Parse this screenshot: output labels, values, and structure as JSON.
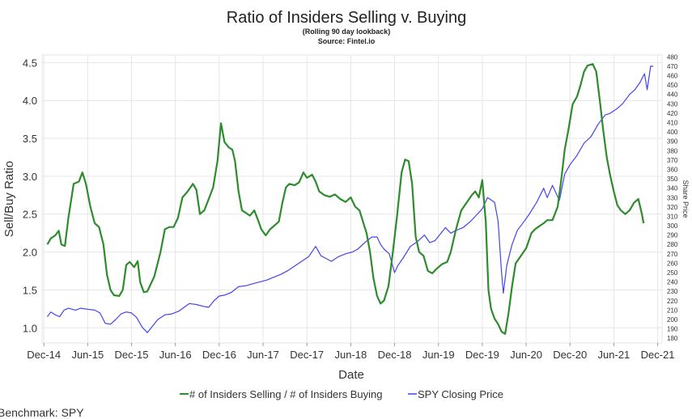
{
  "chart_data": {
    "type": "line",
    "title": "Ratio of Insiders Selling v. Buying",
    "subtitle_1": "(Rolling 90 day lookback)",
    "subtitle_2": "Source: Fintel.io",
    "xlabel": "Date",
    "ylabel": "Sell/Buy Ratio",
    "y2label": "Share Price",
    "xlim": [
      2014.9,
      2021.97
    ],
    "ylim": [
      0.8,
      4.6
    ],
    "y2lim": [
      175,
      482
    ],
    "x_ticks": [
      {
        "label": "Dec-14",
        "x": 2014.92
      },
      {
        "label": "Jun-15",
        "x": 2015.42
      },
      {
        "label": "Dec-15",
        "x": 2015.92
      },
      {
        "label": "Jun-16",
        "x": 2016.42
      },
      {
        "label": "Dec-16",
        "x": 2016.92
      },
      {
        "label": "Jun-17",
        "x": 2017.42
      },
      {
        "label": "Dec-17",
        "x": 2017.92
      },
      {
        "label": "Jun-18",
        "x": 2018.42
      },
      {
        "label": "Dec-18",
        "x": 2018.92
      },
      {
        "label": "Jun-19",
        "x": 2019.42
      },
      {
        "label": "Dec-19",
        "x": 2019.92
      },
      {
        "label": "Jun-20",
        "x": 2020.42
      },
      {
        "label": "Dec-20",
        "x": 2020.92
      },
      {
        "label": "Jun-21",
        "x": 2021.42
      },
      {
        "label": "Dec-21",
        "x": 2021.92
      }
    ],
    "y_ticks": [
      "1.0",
      "1.5",
      "2.0",
      "2.5",
      "3.0",
      "3.5",
      "4.0",
      "4.5"
    ],
    "y2_ticks": [
      180,
      190,
      200,
      210,
      220,
      230,
      240,
      250,
      260,
      270,
      280,
      290,
      300,
      310,
      320,
      330,
      340,
      350,
      360,
      370,
      380,
      390,
      400,
      410,
      420,
      430,
      440,
      450,
      460,
      470,
      480
    ],
    "grid": true,
    "legend_position": "bottom",
    "series": [
      {
        "name": "# of Insiders Selling / # of Insiders Buying",
        "color": "#2e8b2e",
        "axis": "left",
        "points": [
          [
            2014.96,
            2.1
          ],
          [
            2015.0,
            2.18
          ],
          [
            2015.05,
            2.22
          ],
          [
            2015.09,
            2.28
          ],
          [
            2015.12,
            2.1
          ],
          [
            2015.16,
            2.08
          ],
          [
            2015.2,
            2.45
          ],
          [
            2015.26,
            2.9
          ],
          [
            2015.32,
            2.93
          ],
          [
            2015.36,
            3.05
          ],
          [
            2015.4,
            2.9
          ],
          [
            2015.45,
            2.6
          ],
          [
            2015.5,
            2.38
          ],
          [
            2015.55,
            2.33
          ],
          [
            2015.6,
            2.1
          ],
          [
            2015.64,
            1.7
          ],
          [
            2015.68,
            1.5
          ],
          [
            2015.72,
            1.43
          ],
          [
            2015.78,
            1.42
          ],
          [
            2015.82,
            1.5
          ],
          [
            2015.86,
            1.83
          ],
          [
            2015.9,
            1.87
          ],
          [
            2015.95,
            1.8
          ],
          [
            2015.99,
            1.88
          ],
          [
            2016.02,
            1.6
          ],
          [
            2016.06,
            1.47
          ],
          [
            2016.1,
            1.48
          ],
          [
            2016.18,
            1.68
          ],
          [
            2016.25,
            2.0
          ],
          [
            2016.3,
            2.3
          ],
          [
            2016.35,
            2.33
          ],
          [
            2016.4,
            2.33
          ],
          [
            2016.45,
            2.45
          ],
          [
            2016.5,
            2.72
          ],
          [
            2016.56,
            2.8
          ],
          [
            2016.62,
            2.9
          ],
          [
            2016.66,
            2.82
          ],
          [
            2016.7,
            2.5
          ],
          [
            2016.75,
            2.55
          ],
          [
            2016.8,
            2.7
          ],
          [
            2016.85,
            2.85
          ],
          [
            2016.9,
            3.2
          ],
          [
            2016.94,
            3.7
          ],
          [
            2016.98,
            3.45
          ],
          [
            2017.03,
            3.38
          ],
          [
            2017.07,
            3.35
          ],
          [
            2017.1,
            3.2
          ],
          [
            2017.14,
            2.8
          ],
          [
            2017.18,
            2.55
          ],
          [
            2017.22,
            2.52
          ],
          [
            2017.27,
            2.48
          ],
          [
            2017.32,
            2.55
          ],
          [
            2017.36,
            2.43
          ],
          [
            2017.4,
            2.3
          ],
          [
            2017.45,
            2.22
          ],
          [
            2017.5,
            2.3
          ],
          [
            2017.55,
            2.35
          ],
          [
            2017.6,
            2.4
          ],
          [
            2017.64,
            2.65
          ],
          [
            2017.68,
            2.85
          ],
          [
            2017.72,
            2.9
          ],
          [
            2017.78,
            2.88
          ],
          [
            2017.83,
            2.92
          ],
          [
            2017.88,
            3.05
          ],
          [
            2017.92,
            2.98
          ],
          [
            2017.98,
            3.02
          ],
          [
            2018.02,
            2.93
          ],
          [
            2018.06,
            2.8
          ],
          [
            2018.12,
            2.75
          ],
          [
            2018.18,
            2.73
          ],
          [
            2018.24,
            2.76
          ],
          [
            2018.3,
            2.7
          ],
          [
            2018.36,
            2.66
          ],
          [
            2018.42,
            2.72
          ],
          [
            2018.47,
            2.6
          ],
          [
            2018.52,
            2.55
          ],
          [
            2018.56,
            2.4
          ],
          [
            2018.6,
            2.25
          ],
          [
            2018.64,
            2.0
          ],
          [
            2018.68,
            1.65
          ],
          [
            2018.72,
            1.42
          ],
          [
            2018.76,
            1.32
          ],
          [
            2018.8,
            1.36
          ],
          [
            2018.85,
            1.55
          ],
          [
            2018.9,
            2.0
          ],
          [
            2018.95,
            2.5
          ],
          [
            2019.0,
            3.05
          ],
          [
            2019.04,
            3.22
          ],
          [
            2019.08,
            3.2
          ],
          [
            2019.12,
            2.9
          ],
          [
            2019.16,
            2.2
          ],
          [
            2019.2,
            2.0
          ],
          [
            2019.25,
            1.95
          ],
          [
            2019.3,
            1.75
          ],
          [
            2019.35,
            1.72
          ],
          [
            2019.4,
            1.78
          ],
          [
            2019.46,
            1.84
          ],
          [
            2019.52,
            1.87
          ],
          [
            2019.56,
            2.0
          ],
          [
            2019.62,
            2.3
          ],
          [
            2019.68,
            2.55
          ],
          [
            2019.74,
            2.65
          ],
          [
            2019.8,
            2.75
          ],
          [
            2019.84,
            2.8
          ],
          [
            2019.88,
            2.72
          ],
          [
            2019.92,
            2.95
          ],
          [
            2019.96,
            2.4
          ],
          [
            2019.99,
            1.5
          ],
          [
            2020.02,
            1.25
          ],
          [
            2020.06,
            1.12
          ],
          [
            2020.1,
            1.05
          ],
          [
            2020.14,
            0.95
          ],
          [
            2020.18,
            0.92
          ],
          [
            2020.22,
            1.2
          ],
          [
            2020.26,
            1.55
          ],
          [
            2020.3,
            1.85
          ],
          [
            2020.36,
            1.95
          ],
          [
            2020.42,
            2.05
          ],
          [
            2020.48,
            2.25
          ],
          [
            2020.52,
            2.3
          ],
          [
            2020.58,
            2.35
          ],
          [
            2020.62,
            2.38
          ],
          [
            2020.66,
            2.42
          ],
          [
            2020.72,
            2.42
          ],
          [
            2020.78,
            2.6
          ],
          [
            2020.82,
            2.95
          ],
          [
            2020.86,
            3.35
          ],
          [
            2020.9,
            3.6
          ],
          [
            2020.95,
            3.95
          ],
          [
            2021.0,
            4.05
          ],
          [
            2021.04,
            4.2
          ],
          [
            2021.08,
            4.38
          ],
          [
            2021.12,
            4.46
          ],
          [
            2021.18,
            4.48
          ],
          [
            2021.22,
            4.38
          ],
          [
            2021.26,
            4.0
          ],
          [
            2021.3,
            3.6
          ],
          [
            2021.34,
            3.25
          ],
          [
            2021.38,
            3.0
          ],
          [
            2021.42,
            2.8
          ],
          [
            2021.46,
            2.62
          ],
          [
            2021.5,
            2.55
          ],
          [
            2021.55,
            2.5
          ],
          [
            2021.6,
            2.55
          ],
          [
            2021.65,
            2.65
          ],
          [
            2021.7,
            2.7
          ],
          [
            2021.74,
            2.5
          ],
          [
            2021.76,
            2.38
          ]
        ]
      },
      {
        "name": "SPY Closing Price",
        "color": "#4444ee",
        "axis": "right",
        "points": [
          [
            2014.96,
            203
          ],
          [
            2015.0,
            208
          ],
          [
            2015.05,
            205
          ],
          [
            2015.1,
            203
          ],
          [
            2015.15,
            210
          ],
          [
            2015.2,
            212
          ],
          [
            2015.28,
            210
          ],
          [
            2015.34,
            212
          ],
          [
            2015.42,
            211
          ],
          [
            2015.5,
            210
          ],
          [
            2015.56,
            207
          ],
          [
            2015.62,
            196
          ],
          [
            2015.68,
            195
          ],
          [
            2015.74,
            200
          ],
          [
            2015.8,
            206
          ],
          [
            2015.86,
            208
          ],
          [
            2015.92,
            207
          ],
          [
            2015.98,
            202
          ],
          [
            2016.04,
            192
          ],
          [
            2016.1,
            186
          ],
          [
            2016.16,
            193
          ],
          [
            2016.22,
            200
          ],
          [
            2016.3,
            205
          ],
          [
            2016.38,
            206
          ],
          [
            2016.46,
            209
          ],
          [
            2016.52,
            213
          ],
          [
            2016.58,
            217
          ],
          [
            2016.66,
            216
          ],
          [
            2016.74,
            214
          ],
          [
            2016.8,
            213
          ],
          [
            2016.86,
            220
          ],
          [
            2016.92,
            225
          ],
          [
            2016.98,
            226
          ],
          [
            2017.06,
            229
          ],
          [
            2017.14,
            235
          ],
          [
            2017.22,
            236
          ],
          [
            2017.3,
            238
          ],
          [
            2017.38,
            240
          ],
          [
            2017.46,
            242
          ],
          [
            2017.54,
            245
          ],
          [
            2017.62,
            248
          ],
          [
            2017.7,
            252
          ],
          [
            2017.78,
            257
          ],
          [
            2017.86,
            262
          ],
          [
            2017.94,
            267
          ],
          [
            2018.02,
            278
          ],
          [
            2018.08,
            268
          ],
          [
            2018.14,
            265
          ],
          [
            2018.2,
            262
          ],
          [
            2018.28,
            267
          ],
          [
            2018.36,
            270
          ],
          [
            2018.44,
            272
          ],
          [
            2018.5,
            275
          ],
          [
            2018.58,
            282
          ],
          [
            2018.66,
            288
          ],
          [
            2018.72,
            288
          ],
          [
            2018.76,
            280
          ],
          [
            2018.8,
            275
          ],
          [
            2018.86,
            270
          ],
          [
            2018.92,
            250
          ],
          [
            2018.96,
            258
          ],
          [
            2019.02,
            266
          ],
          [
            2019.1,
            278
          ],
          [
            2019.18,
            283
          ],
          [
            2019.26,
            290
          ],
          [
            2019.32,
            282
          ],
          [
            2019.38,
            284
          ],
          [
            2019.44,
            291
          ],
          [
            2019.5,
            298
          ],
          [
            2019.56,
            292
          ],
          [
            2019.62,
            295
          ],
          [
            2019.7,
            298
          ],
          [
            2019.78,
            304
          ],
          [
            2019.86,
            312
          ],
          [
            2019.92,
            318
          ],
          [
            2019.98,
            330
          ],
          [
            2020.06,
            325
          ],
          [
            2020.1,
            305
          ],
          [
            2020.14,
            250
          ],
          [
            2020.16,
            228
          ],
          [
            2020.2,
            258
          ],
          [
            2020.26,
            280
          ],
          [
            2020.32,
            295
          ],
          [
            2020.4,
            305
          ],
          [
            2020.46,
            313
          ],
          [
            2020.54,
            325
          ],
          [
            2020.62,
            340
          ],
          [
            2020.66,
            330
          ],
          [
            2020.72,
            343
          ],
          [
            2020.8,
            327
          ],
          [
            2020.86,
            355
          ],
          [
            2020.92,
            365
          ],
          [
            2021.0,
            375
          ],
          [
            2021.08,
            388
          ],
          [
            2021.16,
            395
          ],
          [
            2021.24,
            408
          ],
          [
            2021.32,
            418
          ],
          [
            2021.38,
            420
          ],
          [
            2021.46,
            425
          ],
          [
            2021.52,
            430
          ],
          [
            2021.6,
            440
          ],
          [
            2021.66,
            445
          ],
          [
            2021.72,
            453
          ],
          [
            2021.77,
            462
          ],
          [
            2021.8,
            445
          ],
          [
            2021.84,
            470
          ],
          [
            2021.87,
            470
          ]
        ]
      }
    ]
  },
  "footer": {
    "benchmark_text": "Benchmark: SPY"
  }
}
